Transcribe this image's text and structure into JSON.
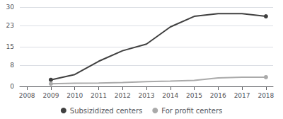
{
  "chart_data": {
    "type": "line",
    "x": [
      2008,
      2009,
      2010,
      2011,
      2012,
      2013,
      2014,
      2015,
      2016,
      2017,
      2018
    ],
    "series": [
      {
        "name": "Subsizidized centers",
        "color": "#404040",
        "values": [
          null,
          2.5,
          4.5,
          9.5,
          13.5,
          16.0,
          22.5,
          26.5,
          27.5,
          27.5,
          26.5
        ]
      },
      {
        "name": "For profit centers",
        "color": "#aaaaaa",
        "values": [
          null,
          1.0,
          1.2,
          1.3,
          1.5,
          1.8,
          2.0,
          2.3,
          3.2,
          3.5,
          3.5
        ]
      }
    ],
    "xlim": [
      2007.7,
      2018.3
    ],
    "xticks": [
      2008,
      2009,
      2010,
      2011,
      2012,
      2013,
      2014,
      2015,
      2016,
      2017,
      2018
    ],
    "ylim": [
      0,
      30
    ],
    "yticks": [
      0,
      8,
      15,
      23,
      30
    ],
    "grid": true,
    "legend": "bottom",
    "marker": "circle"
  }
}
